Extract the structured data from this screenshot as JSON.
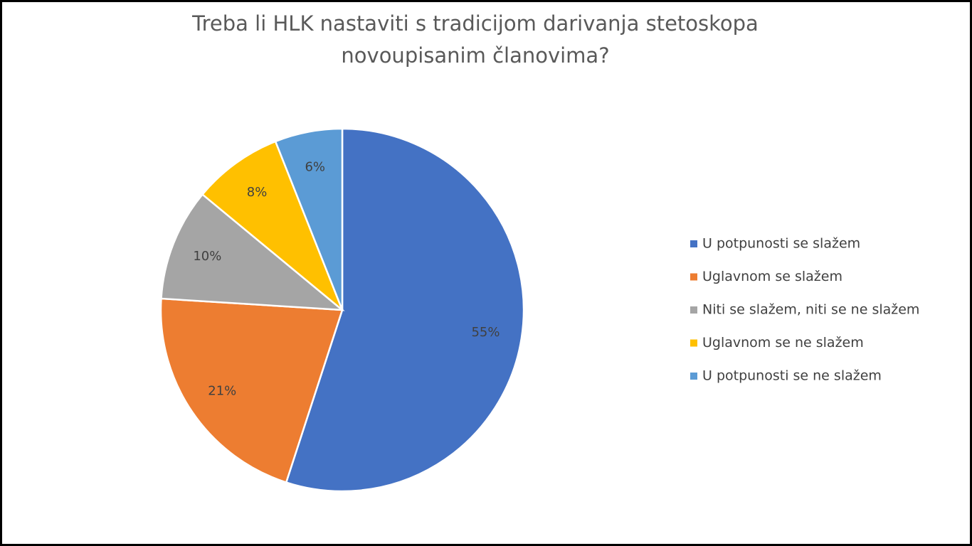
{
  "chart_data": {
    "type": "pie",
    "title": [
      "Treba li HLK nastaviti s tradicijom darivanja stetoskopa",
      "novoupisanim članovima?"
    ],
    "categories": [
      "U potpunosti se slažem",
      "Uglavnom se slažem",
      "Niti se slažem, niti se ne slažem",
      "Uglavnom se ne slažem",
      "U potpunosti se ne slažem"
    ],
    "values": [
      55,
      21,
      10,
      8,
      6
    ],
    "value_labels": [
      "55%",
      "21%",
      "10%",
      "8%",
      "6%"
    ],
    "colors": [
      "#4472c4",
      "#ed7d31",
      "#a5a5a5",
      "#ffc000",
      "#5b9bd5"
    ],
    "legend": "right"
  }
}
